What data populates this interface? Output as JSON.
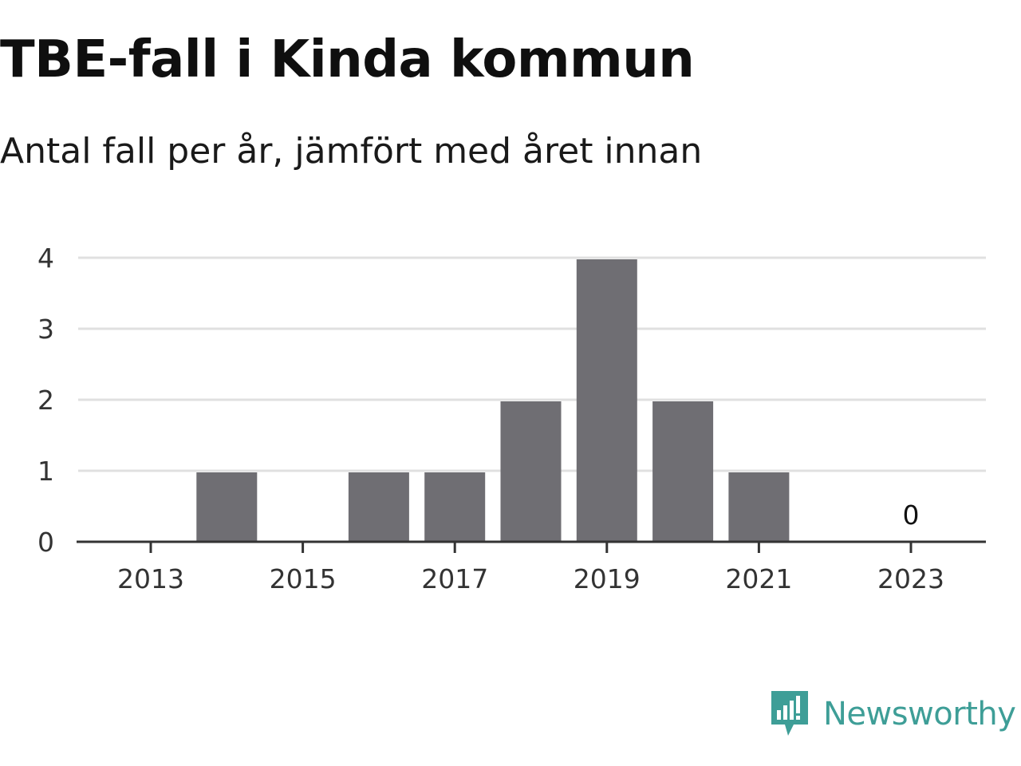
{
  "title": "TBE-fall i Kinda kommun",
  "subtitle": "Antal fall per år, jämfört med året innan",
  "brand": {
    "name": "Newsworthy",
    "color": "#3e9e97",
    "icon": "newsworthy-logo-icon"
  },
  "colors": {
    "bar": "#6f6e73",
    "grid": "#e0e0e0",
    "axis": "#333333"
  },
  "chart_data": {
    "type": "bar",
    "categories": [
      2013,
      2014,
      2015,
      2016,
      2017,
      2018,
      2019,
      2020,
      2021,
      2022,
      2023
    ],
    "values": [
      0,
      1,
      0,
      1,
      1,
      2,
      4,
      2,
      1,
      0,
      0
    ],
    "x_ticks": [
      2013,
      2015,
      2017,
      2019,
      2021,
      2023
    ],
    "y_ticks": [
      0,
      1,
      2,
      3,
      4
    ],
    "ylim": [
      0,
      4
    ],
    "grid": true,
    "annotations": [
      {
        "category": 2023,
        "text": "0"
      }
    ],
    "xlabel": "",
    "ylabel": ""
  }
}
